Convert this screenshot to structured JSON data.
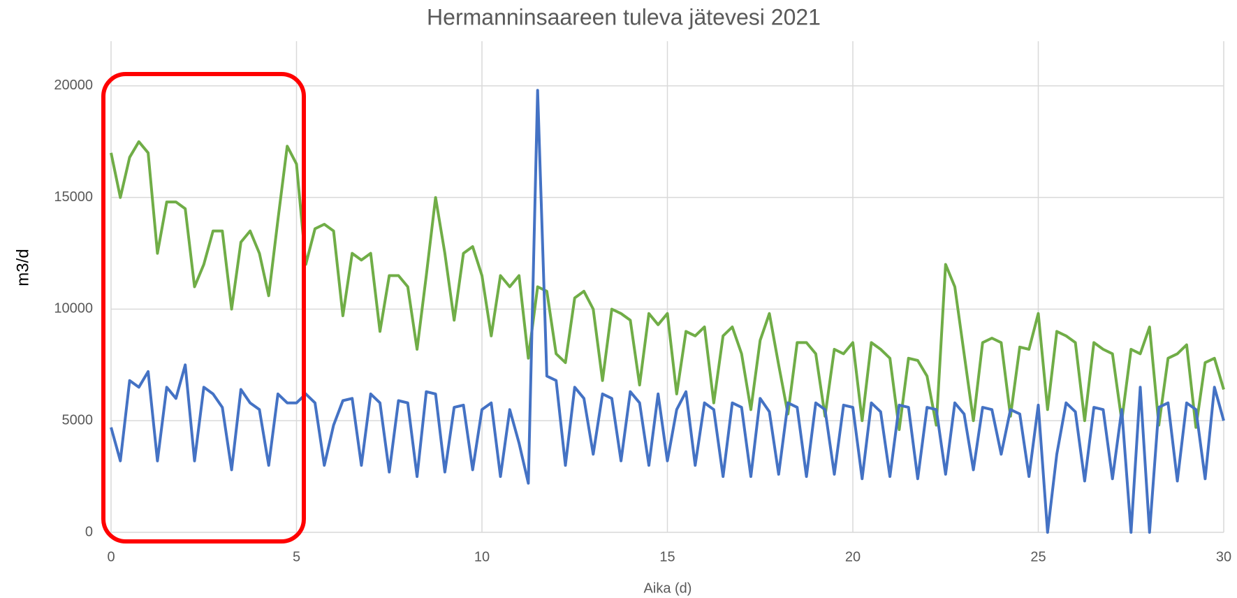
{
  "chart_data": {
    "type": "line",
    "title": "Hermanninsaareen tuleva jätevesi 2021",
    "x_label": "Aika (d)",
    "y_label": "m3/d",
    "xlim": [
      0,
      30
    ],
    "xticks": [
      0,
      5,
      10,
      15,
      20,
      25,
      30
    ],
    "ylim": [
      0,
      22000
    ],
    "yticks": [
      0,
      5000,
      10000,
      15000,
      20000
    ],
    "grid": true,
    "x": [
      0,
      0.25,
      0.5,
      0.75,
      1,
      1.25,
      1.5,
      1.75,
      2,
      2.25,
      2.5,
      2.75,
      3,
      3.25,
      3.5,
      3.75,
      4,
      4.25,
      4.5,
      4.75,
      5,
      5.25,
      5.5,
      5.75,
      6,
      6.25,
      6.5,
      6.75,
      7,
      7.25,
      7.5,
      7.75,
      8,
      8.25,
      8.5,
      8.75,
      9,
      9.25,
      9.5,
      9.75,
      10,
      10.25,
      10.5,
      10.75,
      11,
      11.25,
      11.5,
      11.75,
      12,
      12.25,
      12.5,
      12.75,
      13,
      13.25,
      13.5,
      13.75,
      14,
      14.25,
      14.5,
      14.75,
      15,
      15.25,
      15.5,
      15.75,
      16,
      16.25,
      16.5,
      16.75,
      17,
      17.25,
      17.5,
      17.75,
      18,
      18.25,
      18.5,
      18.75,
      19,
      19.25,
      19.5,
      19.75,
      20,
      20.25,
      20.5,
      20.75,
      21,
      21.25,
      21.5,
      21.75,
      22,
      22.25,
      22.5,
      22.75,
      23,
      23.25,
      23.5,
      23.75,
      24,
      24.25,
      24.5,
      24.75,
      25,
      25.25,
      25.5,
      25.75,
      26,
      26.25,
      26.5,
      26.75,
      27,
      27.25,
      27.5,
      27.75,
      28,
      28.25,
      28.5,
      28.75,
      29,
      29.25,
      29.5,
      29.75,
      30
    ],
    "series": [
      {
        "color": "#70ad47",
        "values": [
          17000,
          15000,
          16800,
          17500,
          17000,
          12500,
          14800,
          14800,
          14500,
          11000,
          12000,
          13500,
          13500,
          10000,
          13000,
          13500,
          12500,
          10600,
          14000,
          17300,
          16500,
          12000,
          13600,
          13800,
          13500,
          9700,
          12500,
          12200,
          12500,
          9000,
          11500,
          11500,
          11000,
          8200,
          11500,
          15000,
          12500,
          9500,
          12500,
          12800,
          11500,
          8800,
          11500,
          11000,
          11500,
          7800,
          11000,
          10800,
          8000,
          7600,
          10500,
          10800,
          10000,
          6800,
          10000,
          9800,
          9500,
          6600,
          9800,
          9300,
          9800,
          6200,
          9000,
          8800,
          9200,
          5800,
          8800,
          9200,
          8000,
          5500,
          8600,
          9800,
          7500,
          5300,
          8500,
          8500,
          8000,
          5200,
          8200,
          8000,
          8500,
          5000,
          8500,
          8200,
          7800,
          4600,
          7800,
          7700,
          7000,
          4800,
          12000,
          11000,
          8000,
          5000,
          8500,
          8700,
          8500,
          5200,
          8300,
          8200,
          9800,
          5500,
          9000,
          8800,
          8500,
          5000,
          8500,
          8200,
          8000,
          5000,
          8200,
          8000,
          9200,
          4800,
          7800,
          8000,
          8400,
          4700,
          7600,
          7800,
          6400
        ]
      },
      {
        "color": "#4472c4",
        "values": [
          4700,
          3200,
          6800,
          6500,
          7200,
          3200,
          6500,
          6000,
          7500,
          3200,
          6500,
          6200,
          5600,
          2800,
          6400,
          5800,
          5500,
          3000,
          6200,
          5800,
          5800,
          6200,
          5800,
          3000,
          4800,
          5900,
          6000,
          3000,
          6200,
          5800,
          2700,
          5900,
          5800,
          2500,
          6300,
          6200,
          2700,
          5600,
          5700,
          2800,
          5500,
          5800,
          2500,
          5500,
          4000,
          2200,
          19800,
          7000,
          6800,
          3000,
          6500,
          6000,
          3500,
          6200,
          6000,
          3200,
          6300,
          5800,
          3000,
          6200,
          3200,
          5500,
          6300,
          3000,
          5800,
          5500,
          2500,
          5800,
          5600,
          2500,
          6000,
          5400,
          2600,
          5800,
          5600,
          2500,
          5800,
          5500,
          2600,
          5700,
          5600,
          2400,
          5800,
          5400,
          2500,
          5700,
          5600,
          2400,
          5600,
          5500,
          2600,
          5800,
          5300,
          2800,
          5600,
          5500,
          3500,
          5500,
          5300,
          2500,
          5700,
          0,
          3500,
          5800,
          5400,
          2300,
          5600,
          5500,
          2400,
          5500,
          0,
          6500,
          0,
          5600,
          5800,
          2300,
          5800,
          5500,
          2400,
          6500,
          5000
        ]
      }
    ]
  }
}
